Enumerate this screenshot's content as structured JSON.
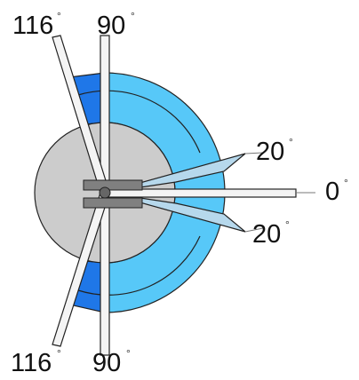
{
  "diagram": {
    "labels": {
      "top_left_angle": "116",
      "top_center_angle": "90",
      "right_upper_angle": "20",
      "right_center_angle": "0",
      "right_lower_angle": "20",
      "bottom_left_angle": "116",
      "bottom_center_angle": "90"
    },
    "degree_symbol": "°",
    "colors": {
      "light_blue": "#57c8f8",
      "dark_blue": "#1f77e8",
      "gray": "#cccccc",
      "outline": "#222222",
      "arm_fill": "#f4f4f4",
      "connector": "#808080"
    }
  }
}
